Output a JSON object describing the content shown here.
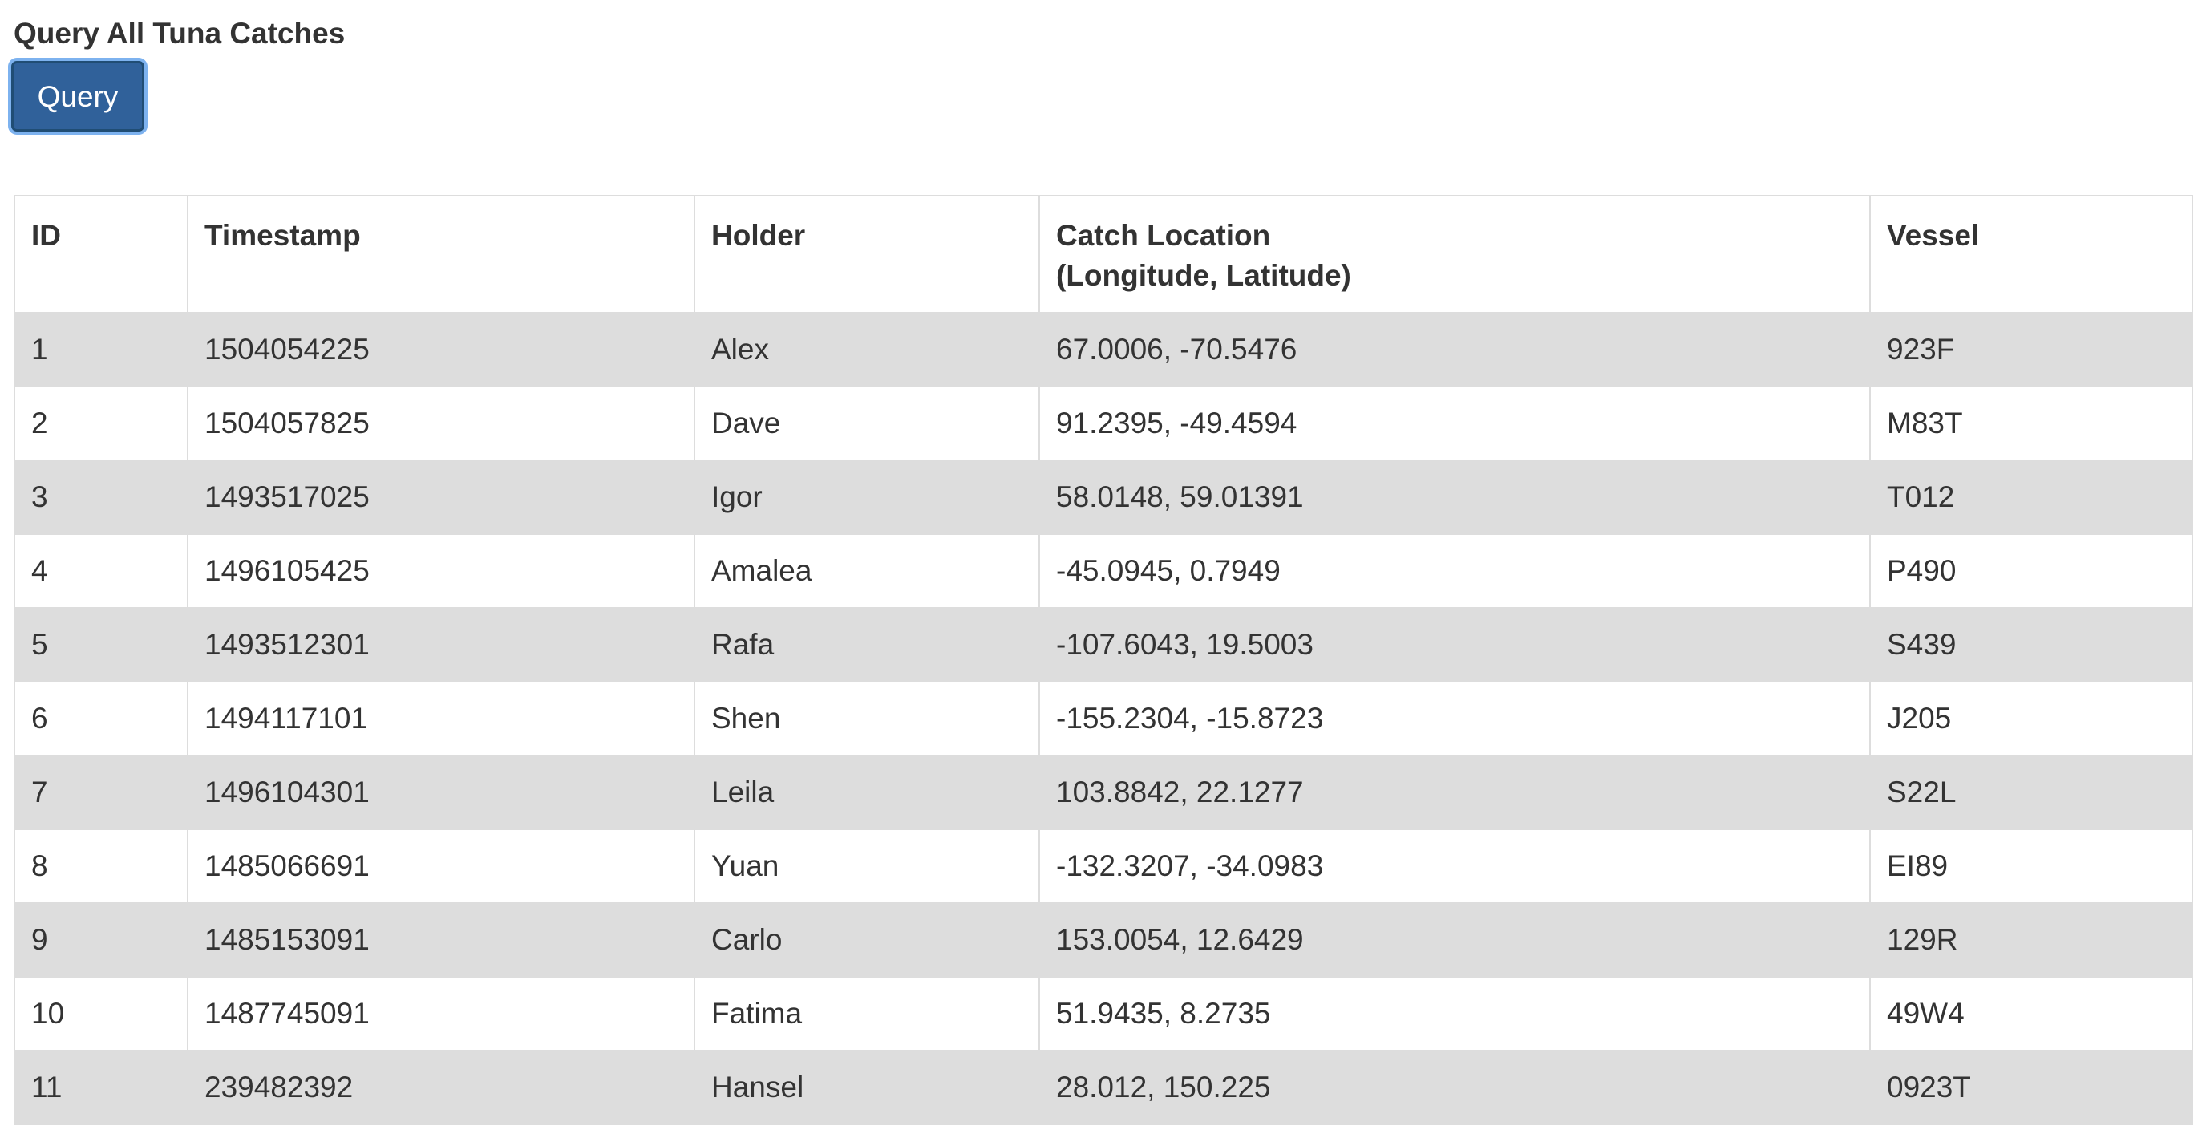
{
  "page": {
    "title": "Query All Tuna Catches",
    "query_button_label": "Query"
  },
  "table": {
    "headers": {
      "id": "ID",
      "timestamp": "Timestamp",
      "holder": "Holder",
      "location_line1": "Catch Location",
      "location_line2": "(Longitude, Latitude)",
      "vessel": "Vessel"
    },
    "rows": [
      {
        "id": "1",
        "timestamp": "1504054225",
        "holder": "Alex",
        "location": "67.0006, -70.5476",
        "vessel": "923F"
      },
      {
        "id": "2",
        "timestamp": "1504057825",
        "holder": "Dave",
        "location": "91.2395, -49.4594",
        "vessel": "M83T"
      },
      {
        "id": "3",
        "timestamp": "1493517025",
        "holder": "Igor",
        "location": "58.0148, 59.01391",
        "vessel": "T012"
      },
      {
        "id": "4",
        "timestamp": "1496105425",
        "holder": "Amalea",
        "location": "-45.0945, 0.7949",
        "vessel": "P490"
      },
      {
        "id": "5",
        "timestamp": "1493512301",
        "holder": "Rafa",
        "location": "-107.6043, 19.5003",
        "vessel": "S439"
      },
      {
        "id": "6",
        "timestamp": "1494117101",
        "holder": "Shen",
        "location": "-155.2304, -15.8723",
        "vessel": "J205"
      },
      {
        "id": "7",
        "timestamp": "1496104301",
        "holder": "Leila",
        "location": "103.8842, 22.1277",
        "vessel": "S22L"
      },
      {
        "id": "8",
        "timestamp": "1485066691",
        "holder": "Yuan",
        "location": "-132.3207, -34.0983",
        "vessel": "EI89"
      },
      {
        "id": "9",
        "timestamp": "1485153091",
        "holder": "Carlo",
        "location": "153.0054, 12.6429",
        "vessel": "129R"
      },
      {
        "id": "10",
        "timestamp": "1487745091",
        "holder": "Fatima",
        "location": "51.9435, 8.2735",
        "vessel": "49W4"
      },
      {
        "id": "11",
        "timestamp": "239482392",
        "holder": "Hansel",
        "location": "28.012, 150.225",
        "vessel": "0923T"
      }
    ]
  },
  "colors": {
    "button_bg": "#30619a",
    "button_focus_ring": "#7db2ef",
    "stripe": "#dddddd",
    "border": "#dddddd",
    "text": "#333333"
  }
}
